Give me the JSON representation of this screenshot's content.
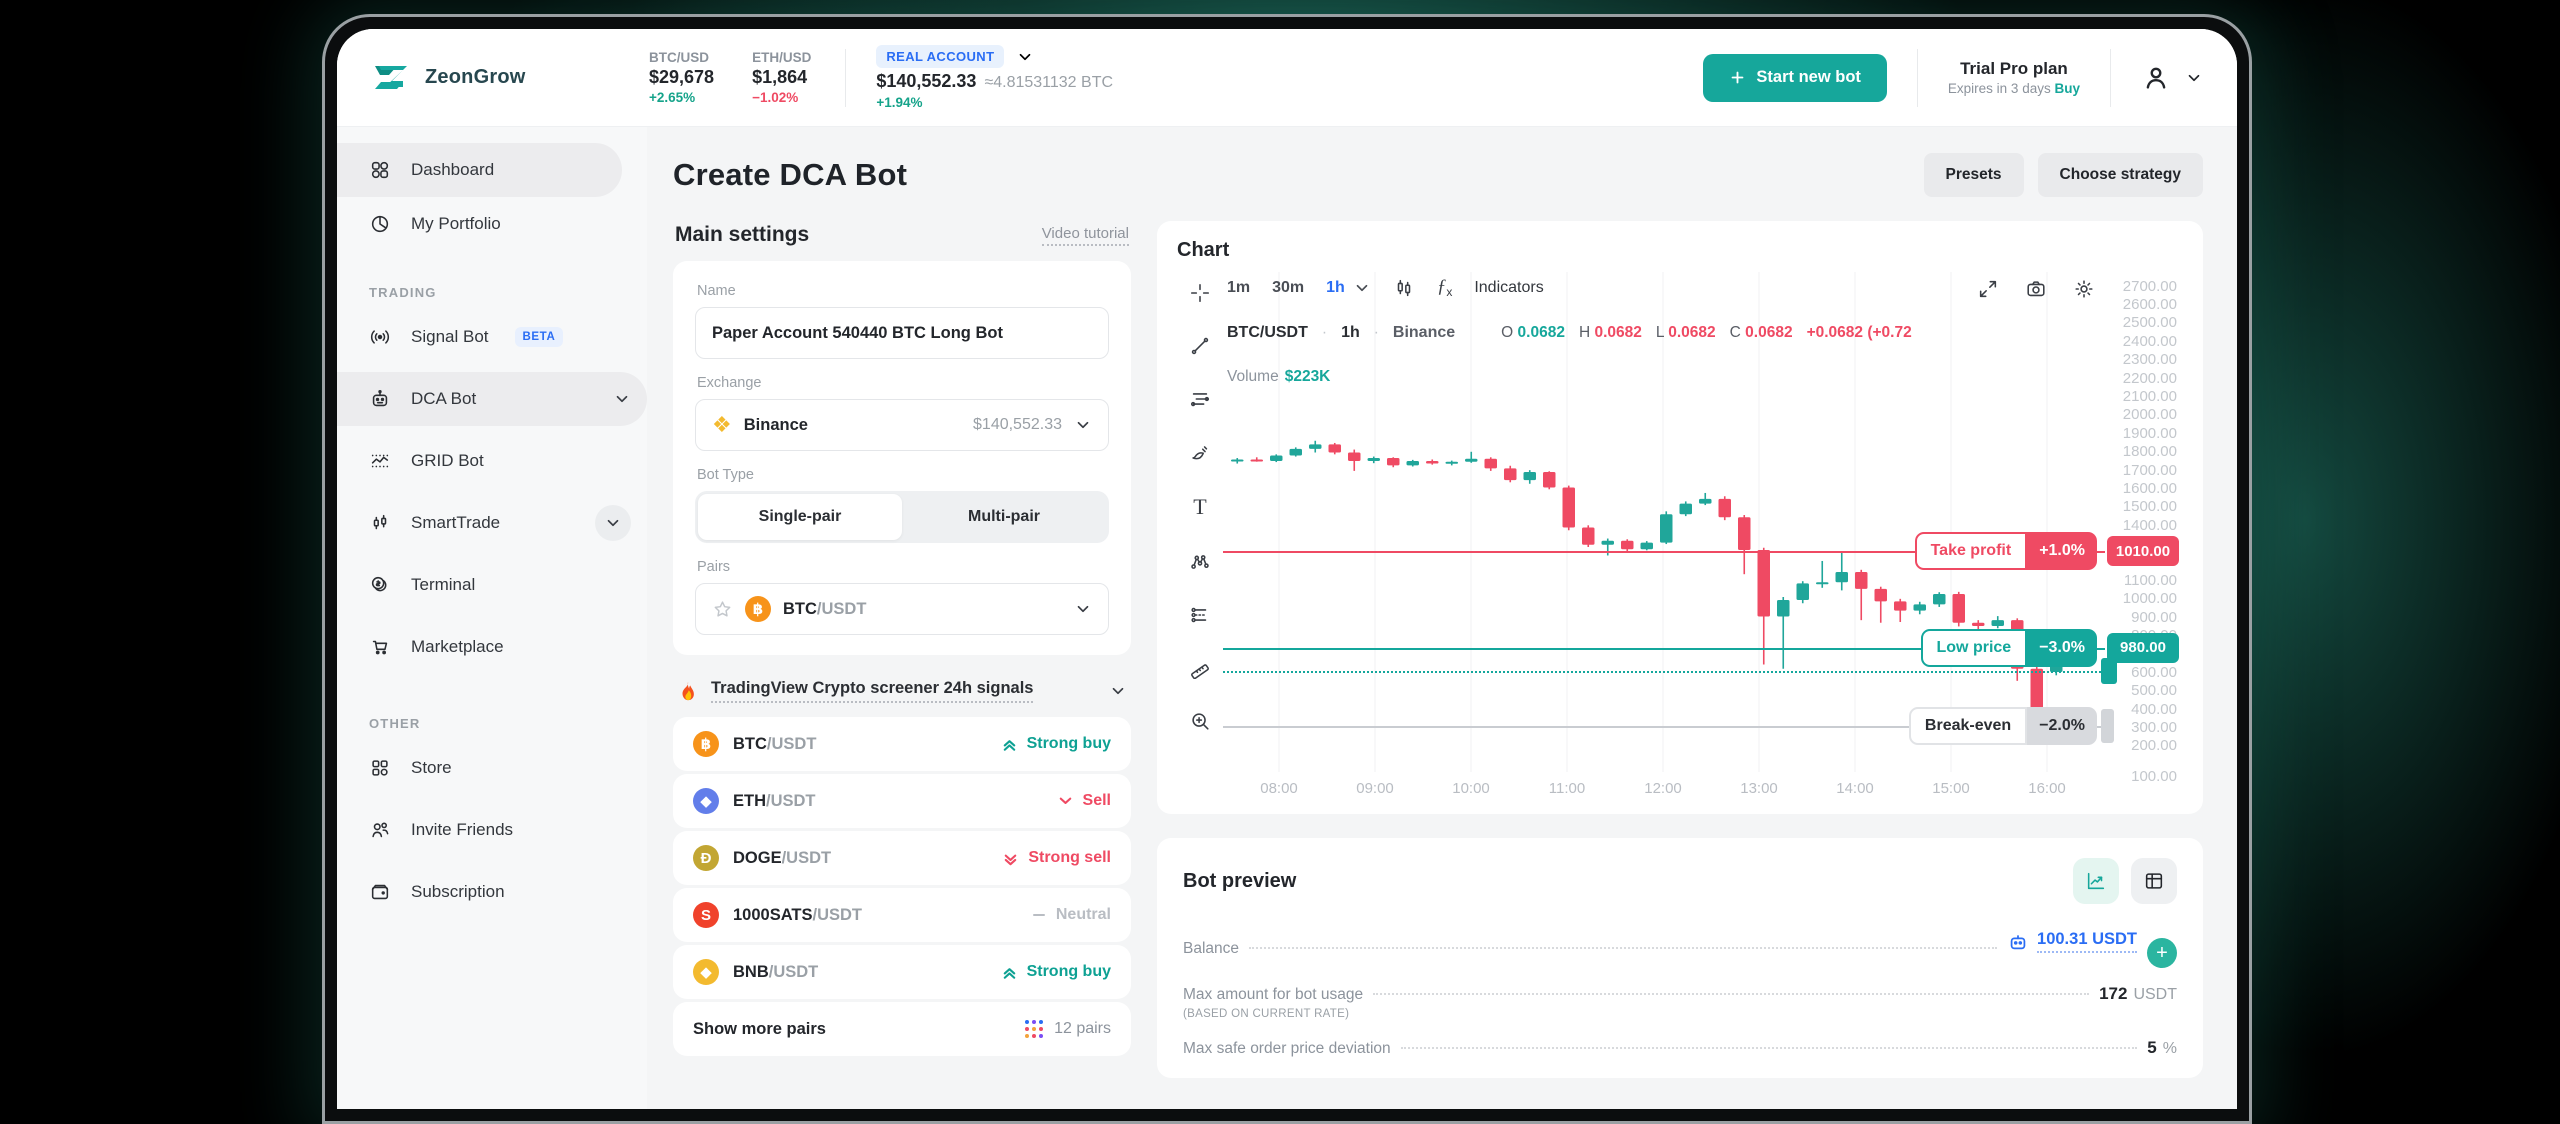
{
  "header": {
    "brand": "ZeonGrow",
    "tickers": [
      {
        "pair": "BTC/USD",
        "price": "$29,678",
        "change": "+2.65%",
        "dir": "up"
      },
      {
        "pair": "ETH/USD",
        "price": "$1,864",
        "change": "−1.02%",
        "dir": "down"
      }
    ],
    "account": {
      "badge": "REAL ACCOUNT",
      "balance": "$140,552.33",
      "approx": "≈4.81531132 BTC",
      "change": "+1.94%"
    },
    "start_bot_label": "Start new bot",
    "plan": {
      "name": "Trial Pro plan",
      "expires": "Expires in 3 days",
      "buy": "Buy"
    }
  },
  "sidebar": {
    "top_items": [
      {
        "label": "Dashboard",
        "icon": "dashboard",
        "active": true
      },
      {
        "label": "My Portfolio",
        "icon": "portfolio"
      }
    ],
    "sections": [
      {
        "title": "TRADING",
        "items": [
          {
            "label": "Signal Bot",
            "icon": "signal",
            "badge": "BETA"
          },
          {
            "label": "DCA Bot",
            "icon": "dca",
            "chevron": true,
            "active": true,
            "wide": true
          },
          {
            "label": "GRID Bot",
            "icon": "grid"
          },
          {
            "label": "SmartTrade",
            "icon": "smart",
            "chevron": true,
            "chevron_circle": true
          },
          {
            "label": "Terminal",
            "icon": "terminal"
          },
          {
            "label": "Marketplace",
            "icon": "market"
          }
        ]
      },
      {
        "title": "OTHER",
        "items": [
          {
            "label": "Store",
            "icon": "store"
          },
          {
            "label": "Invite Friends",
            "icon": "invite"
          },
          {
            "label": "Subscription",
            "icon": "subscription"
          }
        ]
      }
    ]
  },
  "page": {
    "title": "Create DCA Bot",
    "actions": [
      "Presets",
      "Choose strategy"
    ]
  },
  "main_settings": {
    "title": "Main settings",
    "video_tutorial": "Video tutorial",
    "name_label": "Name",
    "name_value": "Paper Account 540440 BTC Long Bot",
    "exchange_label": "Exchange",
    "exchange": {
      "name": "Binance",
      "balance": "$140,552.33"
    },
    "bot_type_label": "Bot Type",
    "bot_type_options": [
      "Single-pair",
      "Multi-pair"
    ],
    "bot_type_selected": "Single-pair",
    "pairs_label": "Pairs",
    "pair": {
      "base": "BTC",
      "quote": "/USDT"
    }
  },
  "signals": {
    "header": "TradingView Crypto screener 24h signals",
    "rows": [
      {
        "base": "BTC",
        "quote": "/USDT",
        "coin": "btc",
        "signal": "Strong buy",
        "dir": "strong-up"
      },
      {
        "base": "ETH",
        "quote": "/USDT",
        "coin": "eth",
        "signal": "Sell",
        "dir": "down"
      },
      {
        "base": "DOGE",
        "quote": "/USDT",
        "coin": "doge",
        "signal": "Strong sell",
        "dir": "strong-down"
      },
      {
        "base": "1000SATS",
        "quote": "/USDT",
        "coin": "sats",
        "signal": "Neutral",
        "dir": "neutral"
      },
      {
        "base": "BNB",
        "quote": "/USDT",
        "coin": "bnb",
        "signal": "Strong buy",
        "dir": "strong-up"
      }
    ],
    "show_more": "Show more pairs",
    "pairs_count": "12 pairs"
  },
  "chart_data": {
    "type": "candlestick",
    "panel_title": "Chart",
    "timeframes": [
      "1m",
      "30m",
      "1h"
    ],
    "selected_timeframe": "1h",
    "indicators_label": "Indicators",
    "pairline": {
      "symbol": "BTC/USDT",
      "interval": "1h",
      "exchange": "Binance"
    },
    "ohlc": [
      {
        "k": "O",
        "v": "0.0682",
        "tone": "up"
      },
      {
        "k": "H",
        "v": "0.0682",
        "tone": "down"
      },
      {
        "k": "L",
        "v": "0.0682",
        "tone": "down"
      },
      {
        "k": "C",
        "v": "0.0682",
        "tone": "down"
      }
    ],
    "change": "+0.0682 (+0.72",
    "volume_label": "Volume",
    "volume_value": "$223K",
    "x_ticks": [
      "08:00",
      "09:00",
      "10:00",
      "11:00",
      "12:00",
      "13:00",
      "14:00",
      "15:00",
      "16:00"
    ],
    "y_ticks": [
      2700,
      2600,
      2500,
      2400,
      2300,
      2200,
      2100,
      2000,
      1900,
      1800,
      1700,
      1600,
      1500,
      1400,
      1300,
      1200,
      1100,
      1000,
      900,
      800,
      700,
      600,
      500,
      400,
      300,
      200,
      100
    ],
    "y_range": [
      60,
      2780
    ],
    "grid": true,
    "colors": {
      "up": "#20a69a",
      "down": "#ef4a63",
      "blue": "#2a6df4",
      "grey_line": "#c9ccd1"
    },
    "candles": [
      [
        1750,
        1768,
        1738,
        1760
      ],
      [
        1760,
        1772,
        1748,
        1752
      ],
      [
        1752,
        1788,
        1746,
        1782
      ],
      [
        1782,
        1826,
        1776,
        1818
      ],
      [
        1818,
        1862,
        1798,
        1842
      ],
      [
        1842,
        1850,
        1788,
        1798
      ],
      [
        1798,
        1814,
        1698,
        1752
      ],
      [
        1752,
        1776,
        1740,
        1768
      ],
      [
        1768,
        1772,
        1718,
        1728
      ],
      [
        1728,
        1758,
        1722,
        1752
      ],
      [
        1752,
        1760,
        1732,
        1738
      ],
      [
        1738,
        1754,
        1728,
        1748
      ],
      [
        1748,
        1802,
        1742,
        1764
      ],
      [
        1764,
        1772,
        1698,
        1712
      ],
      [
        1712,
        1726,
        1636,
        1648
      ],
      [
        1648,
        1702,
        1628,
        1692
      ],
      [
        1692,
        1696,
        1598,
        1608
      ],
      [
        1608,
        1618,
        1375,
        1390
      ],
      [
        1390,
        1402,
        1284,
        1296
      ],
      [
        1296,
        1330,
        1238,
        1318
      ],
      [
        1318,
        1326,
        1262,
        1272
      ],
      [
        1272,
        1316,
        1266,
        1308
      ],
      [
        1308,
        1478,
        1300,
        1462
      ],
      [
        1462,
        1532,
        1452,
        1520
      ],
      [
        1520,
        1578,
        1512,
        1546
      ],
      [
        1546,
        1560,
        1430,
        1446
      ],
      [
        1446,
        1458,
        1136,
        1268
      ],
      [
        1268,
        1280,
        645,
        906
      ],
      [
        906,
        1012,
        622,
        996
      ],
      [
        996,
        1098,
        978,
        1086
      ],
      [
        1086,
        1208,
        1062,
        1092
      ],
      [
        1092,
        1252,
        1048,
        1148
      ],
      [
        1148,
        1160,
        886,
        1056
      ],
      [
        1056,
        1068,
        872,
        988
      ],
      [
        988,
        1002,
        876,
        938
      ],
      [
        938,
        986,
        918,
        972
      ],
      [
        972,
        1038,
        958,
        1028
      ],
      [
        1028,
        1040,
        852,
        872
      ],
      [
        872,
        886,
        836,
        854
      ],
      [
        854,
        908,
        842,
        886
      ],
      [
        886,
        896,
        556,
        622
      ],
      [
        622,
        638,
        340,
        408
      ],
      [
        604,
        688,
        586,
        664
      ]
    ],
    "overlays": [
      {
        "name": "take-profit",
        "label": "Take profit",
        "percent": "+1.0%",
        "price_tag": "1010.00",
        "value": 1260,
        "style": "solid",
        "tone": "red"
      },
      {
        "name": "low-price",
        "label": "Low price",
        "percent": "−3.0%",
        "price_tag": "980.00",
        "value": 735,
        "style": "solid",
        "tone": "teal"
      },
      {
        "name": "safety-line",
        "value": 608,
        "style": "dotted",
        "tone": "teal",
        "handle": true
      },
      {
        "name": "break-even",
        "label": "Break-even",
        "percent": "−2.0%",
        "value": 310,
        "style": "solid",
        "tone": "grey",
        "handle": true
      }
    ]
  },
  "bot_preview": {
    "title": "Bot preview",
    "rows": {
      "balance_label": "Balance",
      "balance_value": "100.31 USDT",
      "max_amount_label": "Max amount for bot usage",
      "max_amount_value": "172",
      "max_amount_unit": "USDT",
      "max_amount_note": "(BASED ON CURRENT RATE)",
      "deviation_label": "Max safe order price deviation",
      "deviation_value": "5",
      "deviation_unit": "%"
    }
  }
}
